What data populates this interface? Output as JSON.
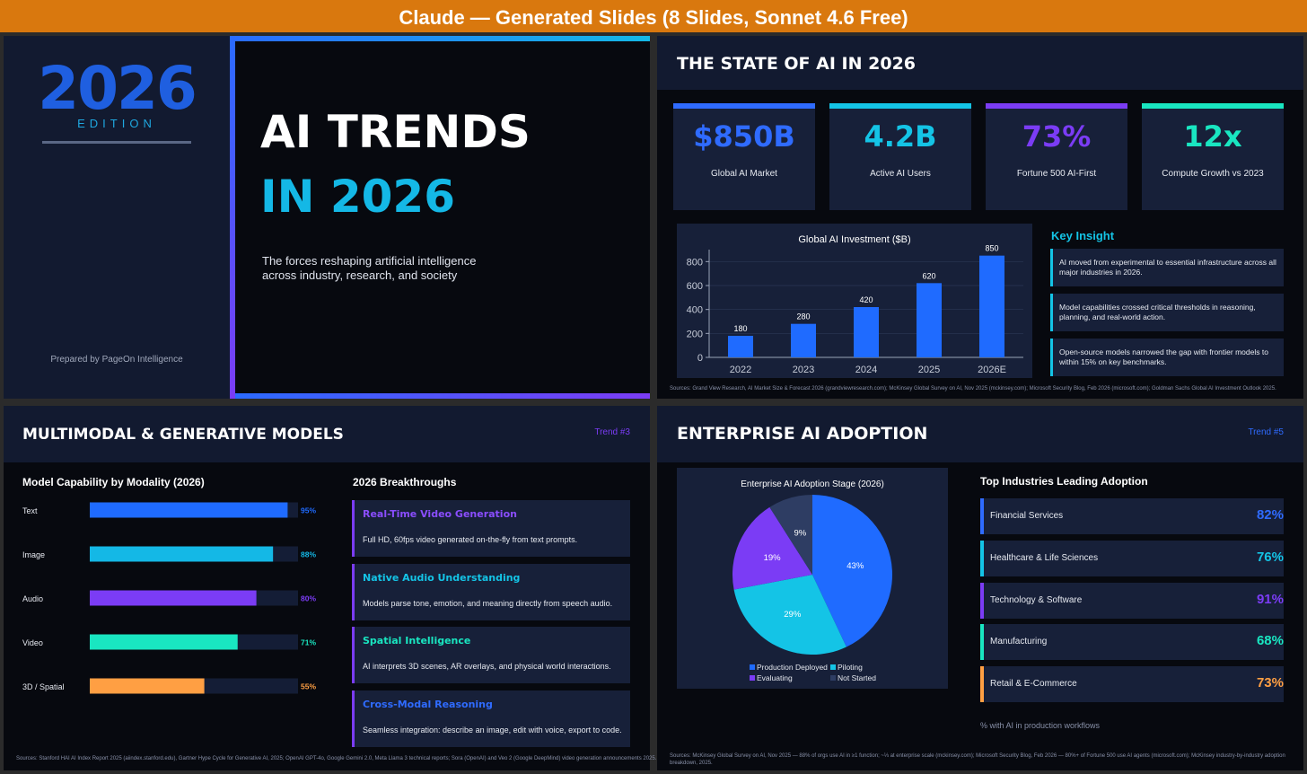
{
  "header": {
    "title": "Claude — Generated Slides (8 Slides, Sonnet 4.6 Free)"
  },
  "slide1": {
    "year": "2026",
    "edition": "EDITION",
    "title_line1": "AI TRENDS",
    "title_line2": "IN 2026",
    "subtitle": "The forces reshaping artificial intelligence across industry, research, and society",
    "prepared_by": "Prepared by PageOn Intelligence"
  },
  "slide2": {
    "title": "THE STATE OF AI IN 2026",
    "stats": [
      {
        "value": "$850B",
        "label": "Global AI Market"
      },
      {
        "value": "4.2B",
        "label": "Active AI Users"
      },
      {
        "value": "73%",
        "label": "Fortune 500 AI-First"
      },
      {
        "value": "12x",
        "label": "Compute Growth vs 2023"
      }
    ],
    "insight_title": "Key Insight",
    "insights": [
      "AI moved from experimental to essential infrastructure across all major industries in 2026.",
      "Model capabilities crossed critical thresholds in reasoning, planning, and real-world action.",
      "Open-source models narrowed the gap with frontier models to within 15% on key benchmarks."
    ],
    "sources": "Sources: Grand View Research, AI Market Size & Forecast 2026 (grandviewresearch.com); McKinsey Global Survey on AI, Nov 2025 (mckinsey.com); Microsoft Security Blog, Feb 2026 (microsoft.com); Goldman Sachs Global AI Investment Outlook 2025."
  },
  "slide3": {
    "title": "MULTIMODAL & GENERATIVE MODELS",
    "trend": "Trend #3",
    "breakthroughs_title": "2026 Breakthroughs",
    "breakthroughs": [
      {
        "title": "Real-Time Video Generation",
        "text": "Full HD, 60fps video generated on-the-fly from text prompts."
      },
      {
        "title": "Native Audio Understanding",
        "text": "Models parse tone, emotion, and meaning directly from speech audio."
      },
      {
        "title": "Spatial Intelligence",
        "text": "AI interprets 3D scenes, AR overlays, and physical world interactions."
      },
      {
        "title": "Cross-Modal Reasoning",
        "text": "Seamless integration: describe an image, edit with voice, export to code."
      }
    ],
    "sources": "Sources: Stanford HAI AI Index Report 2025 (aiindex.stanford.edu), Gartner Hype Cycle for Generative AI, 2025; OpenAI GPT-4o, Google Gemini 2.0, Meta Llama 3 technical reports; Sora (OpenAI) and Veo 2 (Google DeepMind) video generation announcements 2025."
  },
  "slide4": {
    "title": "ENTERPRISE AI ADOPTION",
    "trend": "Trend #5",
    "industries_title": "Top Industries Leading Adoption",
    "industries": [
      {
        "name": "Financial Services",
        "value": "82%"
      },
      {
        "name": "Healthcare & Life Sciences",
        "value": "76%"
      },
      {
        "name": "Technology & Software",
        "value": "91%"
      },
      {
        "name": "Manufacturing",
        "value": "68%"
      },
      {
        "name": "Retail & E-Commerce",
        "value": "73%"
      }
    ],
    "footnote": "% with AI in production workflows",
    "sources": "Sources: McKinsey Global Survey on AI, Nov 2025 — 88% of orgs use AI in ≥1 function; ~⅓ at enterprise scale (mckinsey.com); Microsoft Security Blog, Feb 2026 — 80%+ of Fortune 500 use AI agents (microsoft.com); McKinsey industry-by-industry adoption breakdown, 2025."
  },
  "chart_data": [
    {
      "type": "bar",
      "title": "Global AI Investment ($B)",
      "categories": [
        "2022",
        "2023",
        "2024",
        "2025",
        "2026E"
      ],
      "values": [
        180,
        280,
        420,
        620,
        850
      ],
      "color": "#1f6bff",
      "ylim": [
        0,
        900
      ],
      "yticks": [
        0,
        200,
        400,
        600,
        800
      ],
      "grid": true
    },
    {
      "type": "hbar",
      "title": "Model Capability by Modality (2026)",
      "categories": [
        "Text",
        "Image",
        "Audio",
        "Video",
        "3D / Spatial"
      ],
      "values": [
        95,
        88,
        80,
        71,
        55
      ],
      "value_labels": [
        "95%",
        "88%",
        "80%",
        "71%",
        "55%"
      ],
      "colors": [
        "#1f6bff",
        "#14b8e6",
        "#7b3cf5",
        "#19e6c1",
        "#ff9f43"
      ],
      "xlim": [
        0,
        100
      ]
    },
    {
      "type": "pie",
      "title": "Enterprise AI Adoption Stage (2026)",
      "categories": [
        "Production Deployed",
        "Piloting",
        "Evaluating",
        "Not Started"
      ],
      "values": [
        43,
        29,
        19,
        9
      ],
      "value_labels": [
        "43%",
        "29%",
        "19%",
        "9%"
      ],
      "colors": [
        "#1f6bff",
        "#14c4e6",
        "#7b3cf5",
        "#2e3d63"
      ],
      "legend": "bottom"
    }
  ]
}
